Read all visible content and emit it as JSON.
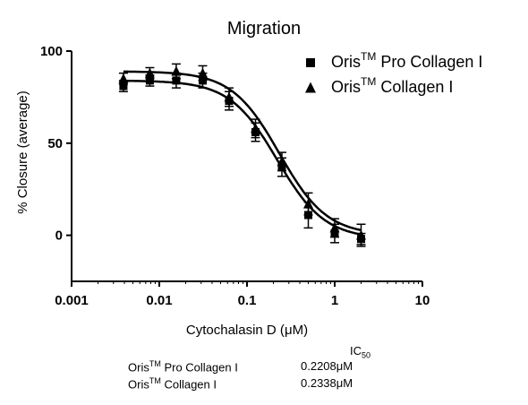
{
  "chart_data": {
    "type": "scatter",
    "title": "Migration",
    "xlabel_prefix": "Cytochalasin D (",
    "xlabel_mu": "μ",
    "xlabel_suffix": "M)",
    "ylabel": "% Closure (average)",
    "xscale": "log",
    "xlim": [
      0.001,
      10
    ],
    "ylim": [
      -25,
      100
    ],
    "xticks": [
      0.001,
      0.01,
      0.1,
      1,
      10
    ],
    "xtick_labels": [
      "0.001",
      "0.01",
      "0.1",
      "1",
      "10"
    ],
    "yticks": [
      0,
      50,
      100
    ],
    "ytick_labels": [
      "0",
      "50",
      "100"
    ],
    "grid": false,
    "legend_position": "top-right",
    "series": [
      {
        "name_base": "Oris",
        "name_sup": "TM",
        "name_rest": " Pro Collagen I",
        "marker": "square",
        "x": [
          0.0039,
          0.0078,
          0.0156,
          0.03125,
          0.0625,
          0.125,
          0.25,
          0.5,
          1,
          2
        ],
        "y": [
          81,
          84,
          84,
          84,
          73,
          56,
          37,
          11,
          1,
          -2
        ],
        "err": [
          3,
          3,
          4,
          4,
          5,
          5,
          5,
          7,
          5,
          3
        ],
        "fit": {
          "top": 84,
          "bottom": -2,
          "ic50": 0.2208,
          "hill": 1.6
        }
      },
      {
        "name_base": "Oris",
        "name_sup": "TM",
        "name_rest": " Collagen I",
        "marker": "triangle",
        "x": [
          0.0039,
          0.0078,
          0.0156,
          0.03125,
          0.0625,
          0.125,
          0.25,
          0.5,
          1,
          2
        ],
        "y": [
          85,
          88,
          89,
          88,
          75,
          58,
          40,
          17,
          4,
          0
        ],
        "err": [
          3,
          3,
          4,
          4,
          5,
          5,
          5,
          6,
          5,
          6
        ],
        "fit": {
          "top": 89,
          "bottom": 0,
          "ic50": 0.2338,
          "hill": 1.6
        }
      }
    ]
  },
  "ic50_table": {
    "header_base": "IC",
    "header_sub": "50",
    "rows": [
      {
        "name_base": "Oris",
        "name_sup": "TM",
        "name_rest": " Pro Collagen I",
        "value_num": "0.2208",
        "value_mu": "μ",
        "value_unit": "M"
      },
      {
        "name_base": "Oris",
        "name_sup": "TM",
        "name_rest": " Collagen I",
        "value_num": "0.2338",
        "value_mu": "μ",
        "value_unit": "M"
      }
    ]
  }
}
